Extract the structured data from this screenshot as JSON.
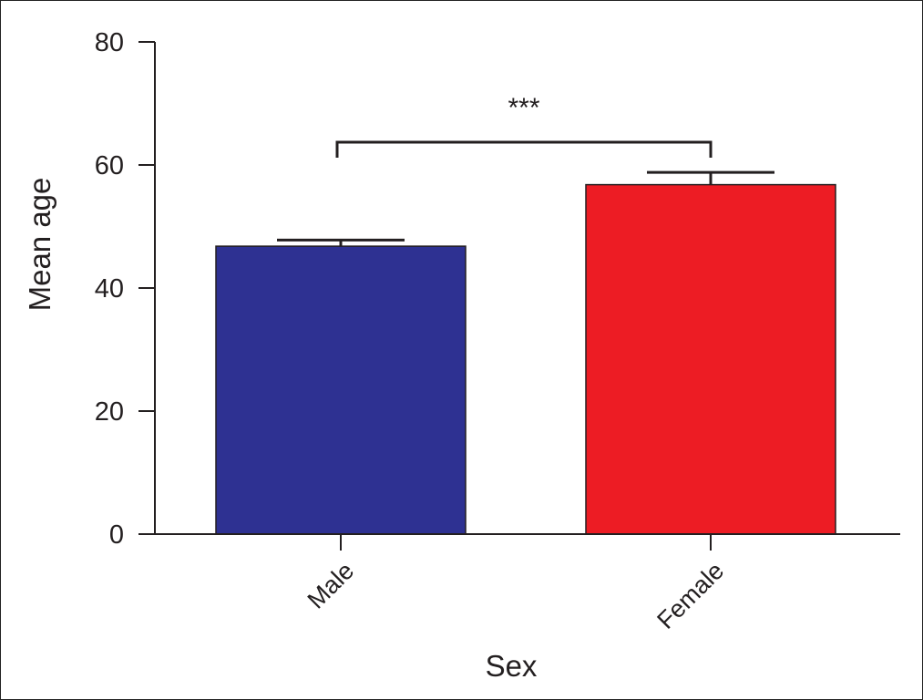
{
  "chart_data": {
    "type": "bar",
    "xlabel": "Sex",
    "ylabel": "Mean age",
    "ylim": [
      0,
      80
    ],
    "yticks": [
      0,
      20,
      40,
      60,
      80
    ],
    "categories": [
      "Male",
      "Female"
    ],
    "values": [
      46.8,
      56.8
    ],
    "errors": [
      1.0,
      2.0
    ],
    "colors": [
      "#2e3192",
      "#ed1c24"
    ],
    "grid": false,
    "significance": {
      "label": "***",
      "between": [
        "Male",
        "Female"
      ]
    }
  }
}
